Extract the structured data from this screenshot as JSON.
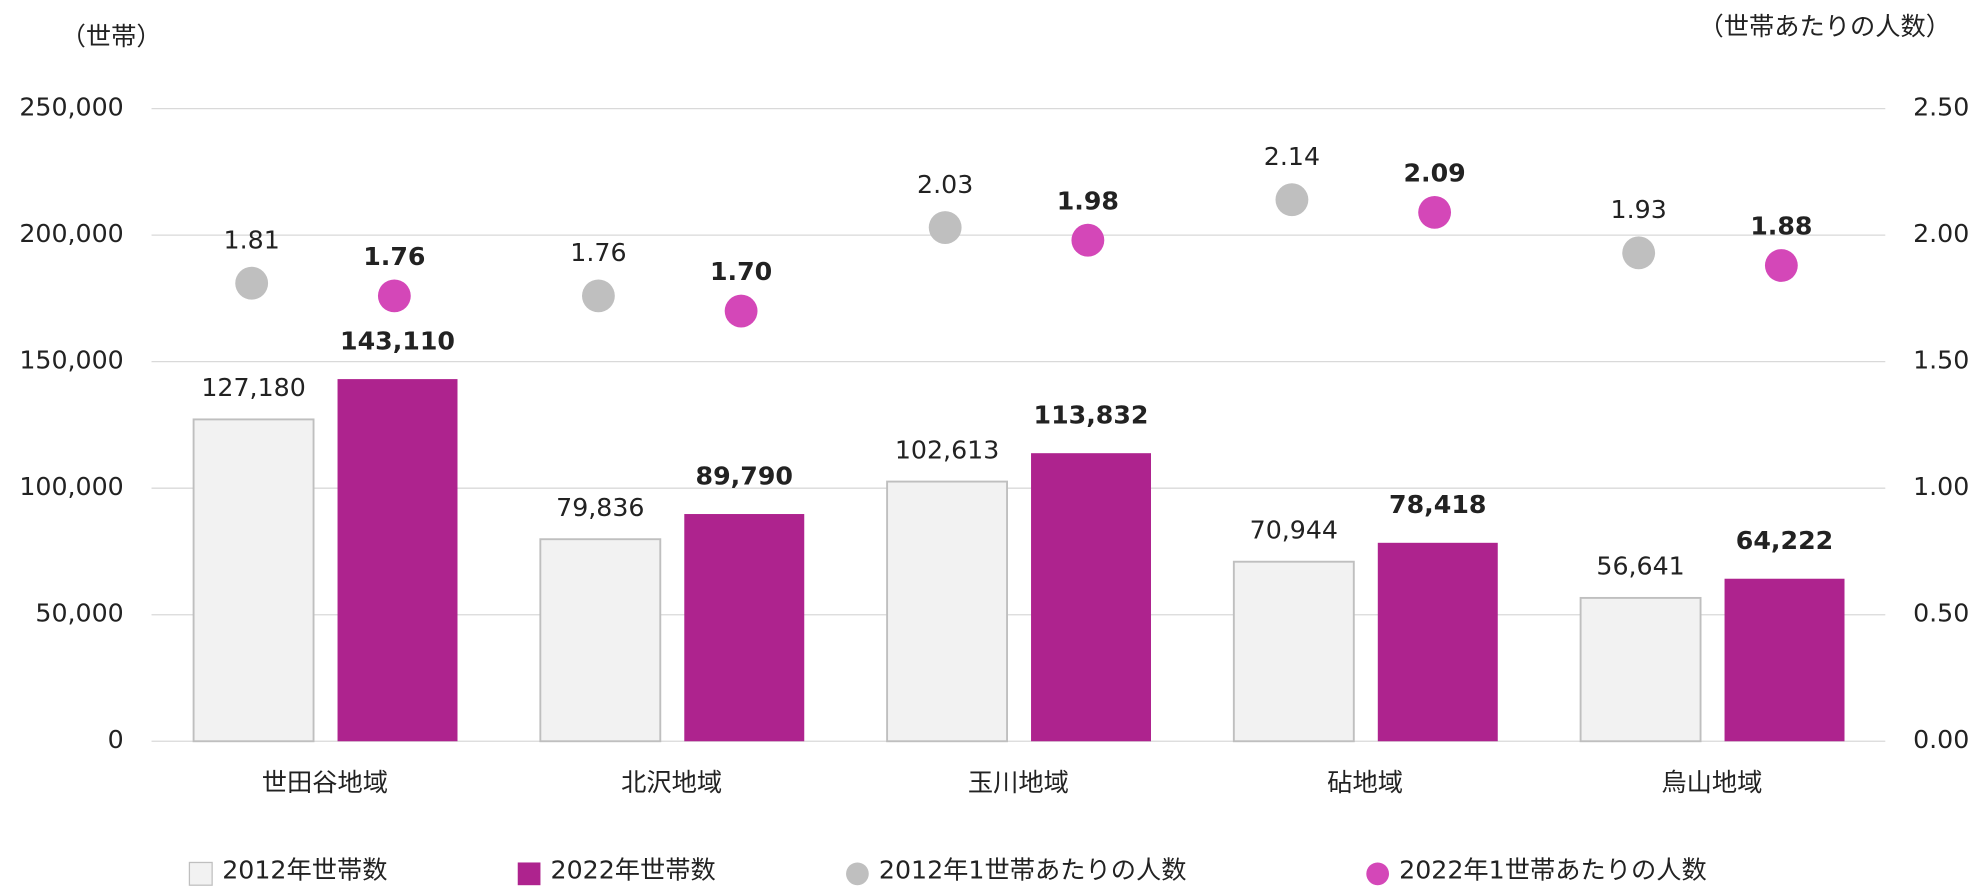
{
  "chart_data": {
    "type": "bar",
    "y_label": "（世帯）",
    "y2_label": "（世帯あたりの人数）",
    "categories": [
      "世田谷地域",
      "北沢地域",
      "玉川地域",
      "砧地域",
      "烏山地域"
    ],
    "ylim": [
      0,
      250000
    ],
    "yticks": [
      {
        "value": 0,
        "label": "0"
      },
      {
        "value": 50000,
        "label": "50,000"
      },
      {
        "value": 100000,
        "label": "100,000"
      },
      {
        "value": 150000,
        "label": "150,000"
      },
      {
        "value": 200000,
        "label": "200,000"
      },
      {
        "value": 250000,
        "label": "250,000"
      }
    ],
    "y2lim": [
      0,
      2.5
    ],
    "y2ticks": [
      {
        "value": 0,
        "label": "0.00"
      },
      {
        "value": 0.5,
        "label": "0.50"
      },
      {
        "value": 1,
        "label": "1.00"
      },
      {
        "value": 1.5,
        "label": "1.50"
      },
      {
        "value": 2,
        "label": "2.00"
      },
      {
        "value": 2.5,
        "label": "2.50"
      }
    ],
    "grid": true,
    "legend": "bottom",
    "series": [
      {
        "name": "2012年世帯数",
        "type": "bar",
        "color": "#f2f2f2",
        "values": [
          127180,
          79836,
          102613,
          70944,
          56641
        ],
        "value_labels": [
          "127,180",
          "79,836",
          "102,613",
          "70,944",
          "56,641"
        ]
      },
      {
        "name": "2022年世帯数",
        "type": "bar",
        "color": "#ae238e",
        "values": [
          143110,
          89790,
          113832,
          78418,
          64222
        ],
        "value_labels": [
          "143,110",
          "89,790",
          "113,832",
          "78,418",
          "64,222"
        ]
      },
      {
        "name": "2012年1世帯あたりの人数",
        "type": "scatter",
        "axis": "y2",
        "color": "#bfbfbf",
        "values": [
          1.81,
          1.76,
          2.03,
          2.14,
          1.93
        ],
        "value_labels": [
          "1.81",
          "1.76",
          "2.03",
          "2.14",
          "1.93"
        ]
      },
      {
        "name": "2022年1世帯あたりの人数",
        "type": "scatter",
        "axis": "y2",
        "color": "#d447b8",
        "values": [
          1.76,
          1.7,
          1.98,
          2.09,
          1.88
        ],
        "value_labels": [
          "1.76",
          "1.70",
          "1.98",
          "2.09",
          "1.88"
        ]
      }
    ]
  }
}
